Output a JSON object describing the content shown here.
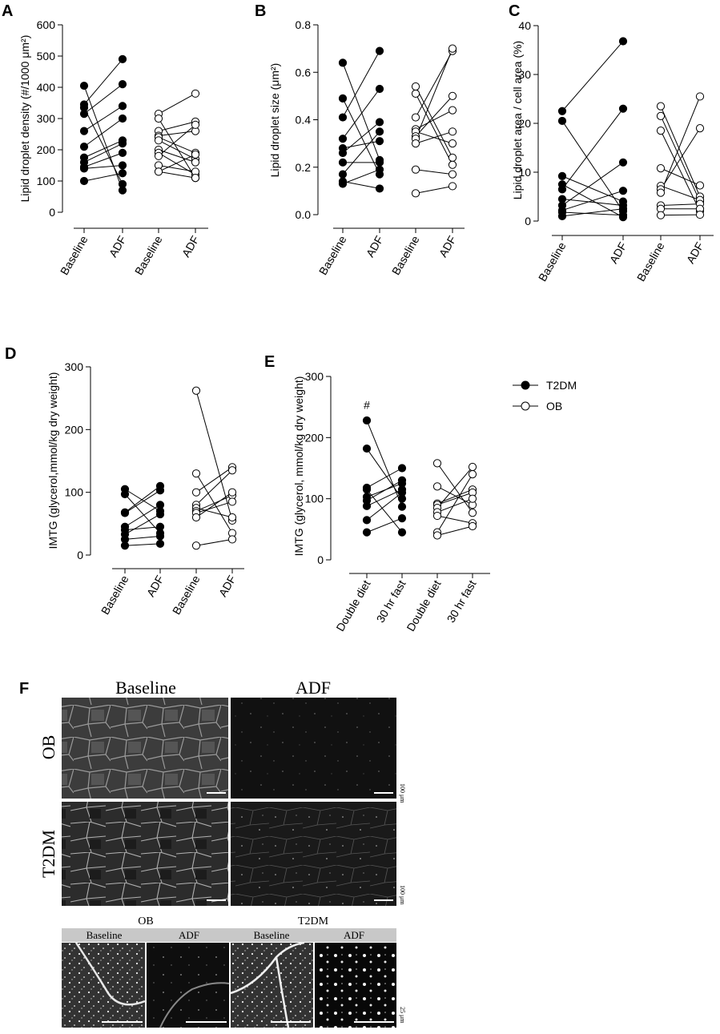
{
  "panels": {
    "A": "A",
    "B": "B",
    "C": "C",
    "D": "D",
    "E": "E",
    "F": "F"
  },
  "legend": {
    "t2dm": "T2DM",
    "ob": "OB",
    "t2dm_color": "#000000",
    "ob_color": "#ffffff"
  },
  "chart_data": [
    {
      "id": "A",
      "type": "scatter",
      "ylabel": "Lipid droplet density (#/1000 μm²)",
      "ylim": [
        0,
        600
      ],
      "yticks": [
        0,
        100,
        200,
        300,
        400,
        500,
        600
      ],
      "categories": [
        "Baseline",
        "ADF",
        "Baseline",
        "ADF"
      ],
      "groups": [
        {
          "name": "T2DM",
          "pairs": [
            [
              405,
              70
            ],
            [
              345,
              490
            ],
            [
              335,
              90
            ],
            [
              315,
              410
            ],
            [
              260,
              340
            ],
            [
              210,
              300
            ],
            [
              175,
              230
            ],
            [
              160,
              220
            ],
            [
              145,
              190
            ],
            [
              140,
              150
            ],
            [
              100,
              125
            ]
          ]
        },
        {
          "name": "OB",
          "pairs": [
            [
              315,
              380
            ],
            [
              300,
              110
            ],
            [
              260,
              290
            ],
            [
              245,
              260
            ],
            [
              240,
              190
            ],
            [
              230,
              170
            ],
            [
              200,
              160
            ],
            [
              190,
              120
            ],
            [
              180,
              280
            ],
            [
              150,
              130
            ],
            [
              130,
              185
            ],
            [
              130,
              110
            ]
          ]
        }
      ]
    },
    {
      "id": "B",
      "type": "scatter",
      "ylabel": "Lipid droplet size (μm²)",
      "ylim": [
        0,
        0.8
      ],
      "yticks": [
        "0.0",
        "0.2",
        "0.4",
        "0.6",
        "0.8"
      ],
      "categories": [
        "Baseline",
        "ADF",
        "Baseline",
        "ADF"
      ],
      "groups": [
        {
          "name": "T2DM",
          "pairs": [
            [
              0.64,
              0.23
            ],
            [
              0.49,
              0.17
            ],
            [
              0.41,
              0.69
            ],
            [
              0.32,
              0.53
            ],
            [
              0.28,
              0.31
            ],
            [
              0.26,
              0.39
            ],
            [
              0.22,
              0.22
            ],
            [
              0.17,
              0.35
            ],
            [
              0.14,
              0.11
            ],
            [
              0.13,
              0.19
            ]
          ]
        },
        {
          "name": "OB",
          "pairs": [
            [
              0.54,
              0.24
            ],
            [
              0.51,
              0.21
            ],
            [
              0.41,
              0.69
            ],
            [
              0.36,
              0.44
            ],
            [
              0.35,
              0.3
            ],
            [
              0.33,
              0.5
            ],
            [
              0.32,
              0.7
            ],
            [
              0.3,
              0.35
            ],
            [
              0.19,
              0.17
            ],
            [
              0.09,
              0.12
            ]
          ]
        }
      ]
    },
    {
      "id": "C",
      "type": "scatter",
      "ylabel": "Lipid droplet area / cell area (%)",
      "ylim": [
        0,
        40
      ],
      "yticks": [
        0,
        10,
        20,
        30,
        40
      ],
      "categories": [
        "Baseline",
        "ADF",
        "Baseline",
        "ADF"
      ],
      "groups": [
        {
          "name": "T2DM",
          "pairs": [
            [
              22.5,
              36.8
            ],
            [
              20.5,
              2.0
            ],
            [
              9.2,
              4.0
            ],
            [
              7.5,
              0.8
            ],
            [
              6.5,
              23.0
            ],
            [
              4.5,
              3.2
            ],
            [
              3.2,
              12.0
            ],
            [
              2.2,
              6.2
            ],
            [
              1.8,
              1.2
            ],
            [
              1.0,
              2.5
            ]
          ]
        },
        {
          "name": "OB",
          "pairs": [
            [
              23.5,
              5.0
            ],
            [
              21.5,
              4.0
            ],
            [
              18.5,
              2.0
            ],
            [
              10.8,
              7.3
            ],
            [
              7.2,
              4.3
            ],
            [
              6.5,
              19.0
            ],
            [
              5.8,
              25.5
            ],
            [
              3.2,
              3.5
            ],
            [
              2.5,
              2.5
            ],
            [
              1.2,
              1.3
            ]
          ]
        }
      ]
    },
    {
      "id": "D",
      "type": "scatter",
      "ylabel": "IMTG (glycerol,mmol/kg dry weight)",
      "ylim": [
        0,
        300
      ],
      "yticks": [
        0,
        100,
        200,
        300
      ],
      "categories": [
        "Baseline",
        "ADF",
        "Baseline",
        "ADF"
      ],
      "groups": [
        {
          "name": "T2DM",
          "pairs": [
            [
              105,
              70
            ],
            [
              97,
              35
            ],
            [
              68,
              110
            ],
            [
              67,
              103
            ],
            [
              45,
              80
            ],
            [
              40,
              45
            ],
            [
              33,
              65
            ],
            [
              25,
              30
            ],
            [
              15,
              18
            ]
          ]
        },
        {
          "name": "OB",
          "pairs": [
            [
              262,
              55
            ],
            [
              130,
              35
            ],
            [
              100,
              140
            ],
            [
              80,
              135
            ],
            [
              75,
              60
            ],
            [
              70,
              95
            ],
            [
              67,
              85
            ],
            [
              60,
              100
            ],
            [
              15,
              25
            ]
          ]
        }
      ]
    },
    {
      "id": "E",
      "type": "scatter",
      "ylabel": "IMTG (glycerol, mmol/kg dry weight)",
      "ylim": [
        0,
        300
      ],
      "yticks": [
        0,
        100,
        200,
        300
      ],
      "categories": [
        "Double diet",
        "30 hr fast",
        "Double diet",
        "30 hr fast"
      ],
      "annotation": "#",
      "groups": [
        {
          "name": "T2DM",
          "pairs": [
            [
              228,
              87
            ],
            [
              182,
              100
            ],
            [
              118,
              150
            ],
            [
              115,
              45
            ],
            [
              103,
              125
            ],
            [
              97,
              130
            ],
            [
              88,
              115
            ],
            [
              65,
              110
            ],
            [
              45,
              68
            ]
          ]
        },
        {
          "name": "OB",
          "pairs": [
            [
              158,
              77
            ],
            [
              120,
              90
            ],
            [
              92,
              115
            ],
            [
              90,
              110
            ],
            [
              85,
              152
            ],
            [
              78,
              100
            ],
            [
              72,
              60
            ],
            [
              45,
              140
            ],
            [
              40,
              55
            ]
          ]
        }
      ]
    }
  ],
  "micrographs": {
    "col_baseline": "Baseline",
    "col_adf": "ADF",
    "row_ob": "OB",
    "row_t2dm": "T2DM",
    "scale_100": "100 μm",
    "strip_ob": "OB",
    "strip_t2dm": "T2DM",
    "strip_labels": [
      "Baseline",
      "ADF",
      "Baseline",
      "ADF"
    ],
    "scale_25": "25 μm"
  }
}
